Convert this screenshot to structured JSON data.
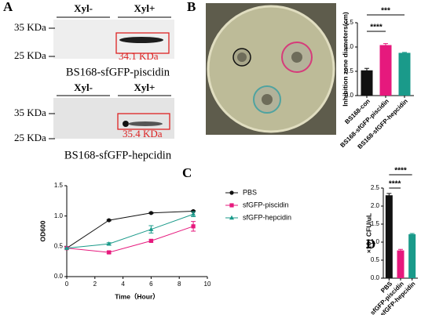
{
  "panel_labels": [
    "A",
    "B",
    "C",
    "D"
  ],
  "blots": [
    {
      "lanes": [
        "Xyl-",
        "Xyl+"
      ],
      "markers": [
        "35 KDa",
        "25 KDa"
      ],
      "size": "34.1 KDa",
      "caption": "BS168-sfGFP-piscidin"
    },
    {
      "lanes": [
        "Xyl-",
        "Xyl+"
      ],
      "markers": [
        "35 KDa",
        "25 KDa"
      ],
      "size": "35.4 KDa",
      "caption": "BS168-sfGFP-hepcidin"
    }
  ],
  "chart_data": [
    {
      "type": "bar",
      "ylabel": "Inhibition zone diameters(cm)",
      "categories": [
        "BS168-con",
        "BS168-sfGFP-piscidin",
        "BS168-sfGFP-hepcidin"
      ],
      "values": [
        0.52,
        1.04,
        0.88
      ],
      "errors": [
        0.04,
        0.03,
        0.01
      ],
      "colors": [
        "#111111",
        "#e6197d",
        "#1a9a8a"
      ],
      "ylim": [
        0,
        1.5
      ],
      "yticks": [
        {
          "value": 0,
          "label": "0.0"
        },
        {
          "value": 0.5,
          "label": "0.5"
        },
        {
          "value": 1,
          "label": "1.0"
        },
        {
          "value": 1.5,
          "label": "1.5"
        }
      ],
      "annotations": [
        "***",
        "****"
      ]
    },
    {
      "type": "line",
      "xlabel": "Time（Hour）",
      "ylabel": "OD600",
      "x": [
        0,
        3,
        6,
        9
      ],
      "series": [
        {
          "name": "PBS",
          "color": "#111111",
          "values": [
            0.47,
            0.93,
            1.05,
            1.08
          ],
          "errors": [
            0,
            0.01,
            0.01,
            0.01
          ]
        },
        {
          "name": "sfGFP-piscidin",
          "color": "#e6197d",
          "values": [
            0.47,
            0.4,
            0.59,
            0.83
          ],
          "errors": [
            0,
            0.02,
            0.02,
            0.08
          ]
        },
        {
          "name": "sfGFP-hepcidin",
          "color": "#1a9a8a",
          "values": [
            0.47,
            0.54,
            0.78,
            1.03
          ],
          "errors": [
            0,
            0.02,
            0.06,
            0.04
          ]
        }
      ],
      "xlim": [
        0,
        10
      ],
      "xticks": [
        0,
        2,
        4,
        6,
        8,
        10
      ],
      "ylim": [
        0,
        1.5
      ],
      "yticks": [
        {
          "value": 0,
          "label": "0.0"
        },
        {
          "value": 0.5,
          "label": "0.5"
        },
        {
          "value": 1,
          "label": "1.0"
        },
        {
          "value": 1.5,
          "label": "1.5"
        }
      ]
    },
    {
      "type": "bar",
      "ylabel": "×10⁴ CFU/uL",
      "categories": [
        "PBS",
        "sfGFP-piscidin",
        "sfGFP-hepcidin"
      ],
      "values": [
        2.3,
        0.77,
        1.22
      ],
      "errors": [
        0.05,
        0.03,
        0.02
      ],
      "colors": [
        "#111111",
        "#e6197d",
        "#1a9a8a"
      ],
      "ylim": [
        0,
        2.5
      ],
      "yticks": [
        {
          "value": 0,
          "label": "0.0"
        },
        {
          "value": 0.5,
          "label": "0.5"
        },
        {
          "value": 1,
          "label": "1.0"
        },
        {
          "value": 1.5,
          "label": "1.5"
        },
        {
          "value": 2,
          "label": "2.0"
        },
        {
          "value": 2.5,
          "label": "2.5"
        }
      ],
      "annotations": [
        "****",
        "****"
      ]
    }
  ]
}
